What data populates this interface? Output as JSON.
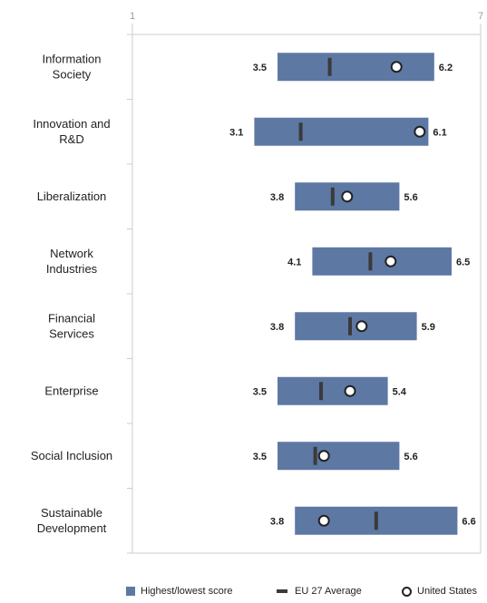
{
  "chart_data": {
    "type": "range",
    "xlim": [
      1,
      7
    ],
    "x_ticks": [
      "1",
      "7"
    ],
    "categories": [
      [
        "Information",
        "Society"
      ],
      [
        "Innovation and",
        "R&D"
      ],
      [
        "Liberalization"
      ],
      [
        "Network",
        "Industries"
      ],
      [
        "Financial",
        "Services"
      ],
      [
        "Enterprise"
      ],
      [
        "Social Inclusion"
      ],
      [
        "Sustainable",
        "Development"
      ]
    ],
    "series": [
      {
        "name": "Highest/lowest score",
        "low": [
          3.5,
          3.1,
          3.8,
          4.1,
          3.8,
          3.5,
          3.5,
          3.8
        ],
        "high": [
          6.2,
          6.1,
          5.6,
          6.5,
          5.9,
          5.4,
          5.6,
          6.6
        ]
      },
      {
        "name": "EU 27 Average",
        "values": [
          4.4,
          3.9,
          4.45,
          5.1,
          4.75,
          4.25,
          4.15,
          5.2
        ]
      },
      {
        "name": "United States",
        "values": [
          5.55,
          5.95,
          4.7,
          5.45,
          4.95,
          4.75,
          4.3,
          4.3
        ]
      }
    ],
    "low_labels": [
      "3.5",
      "3.1",
      "3.8",
      "4.1",
      "3.8",
      "3.5",
      "3.5",
      "3.8"
    ],
    "high_labels": [
      "6.2",
      "6.1",
      "5.6",
      "6.5",
      "5.9",
      "5.4",
      "5.6",
      "6.6"
    ],
    "colors": {
      "range_bar": "#5e78a4",
      "avg_marker": "#3a3a3a",
      "us_marker": "#222222",
      "frame": "#cccccc"
    },
    "legend_position": "bottom"
  },
  "legend": {
    "range": "Highest/lowest score",
    "avg": "EU 27 Average",
    "us": "United States"
  }
}
